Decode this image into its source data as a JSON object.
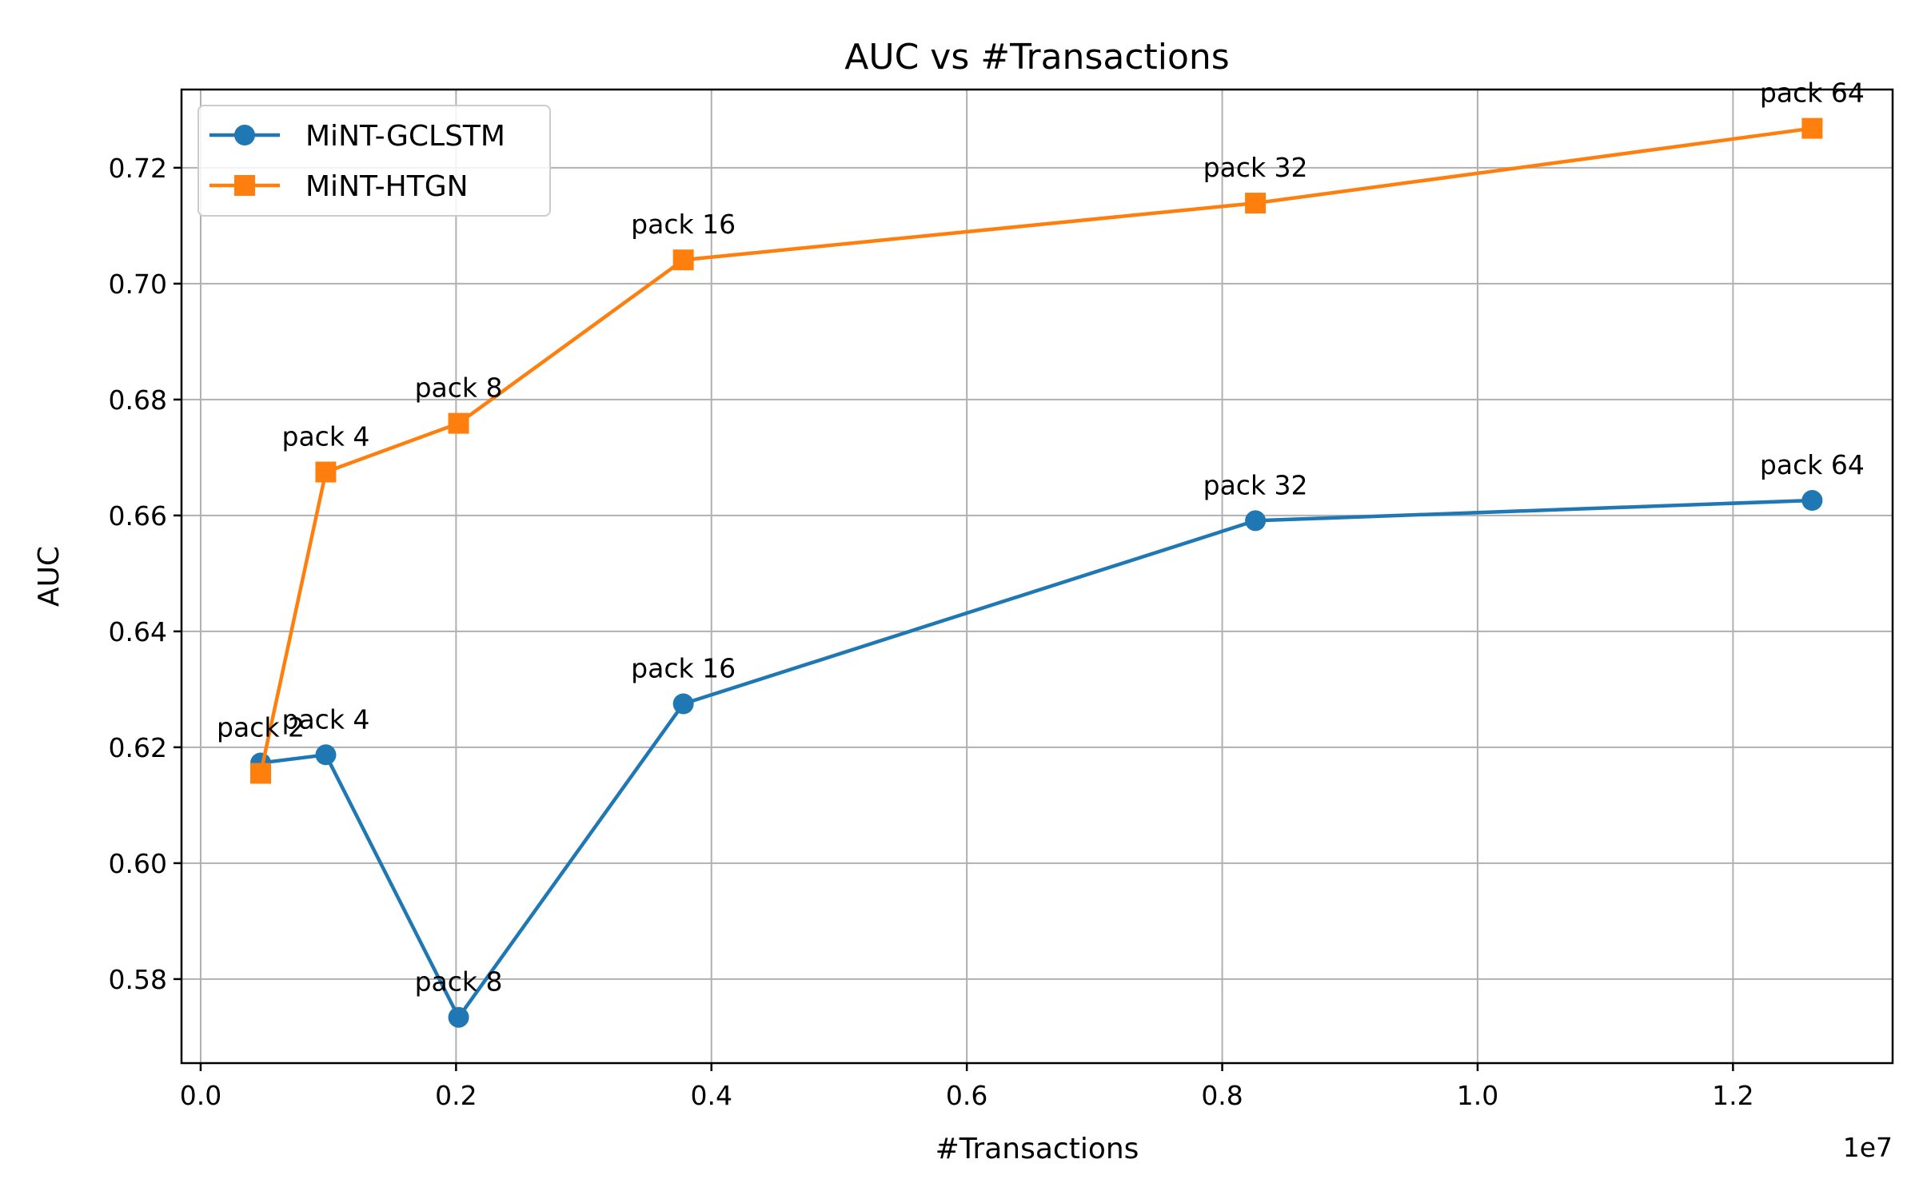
{
  "chart_data": {
    "type": "line",
    "title": "AUC vs #Transactions",
    "xlabel": "#Transactions",
    "ylabel": "AUC",
    "x_offset_text": "1e7",
    "xlim": [
      -0.015,
      1.325
    ],
    "ylim": [
      0.5655,
      0.7335
    ],
    "xticks": [
      0.0,
      0.2,
      0.4,
      0.6,
      0.8,
      1.0,
      1.2
    ],
    "xtick_labels": [
      "0.0",
      "0.2",
      "0.4",
      "0.6",
      "0.8",
      "1.0",
      "1.2"
    ],
    "yticks": [
      0.58,
      0.6,
      0.62,
      0.64,
      0.66,
      0.68,
      0.7,
      0.72
    ],
    "ytick_labels": [
      "0.58",
      "0.60",
      "0.62",
      "0.64",
      "0.66",
      "0.68",
      "0.70",
      "0.72"
    ],
    "grid": true,
    "legend_position": "top-left",
    "series": [
      {
        "name": "MiNT-GCLSTM",
        "color": "#1f77b4",
        "marker": "circle",
        "x": [
          0.047,
          0.098,
          0.202,
          0.378,
          0.826,
          1.262
        ],
        "y": [
          0.6173,
          0.6187,
          0.5734,
          0.6275,
          0.6591,
          0.6626
        ],
        "labels": [
          "pack 2",
          "pack 4",
          "pack 8",
          "pack 16",
          "pack 32",
          "pack 64"
        ]
      },
      {
        "name": "MiNT-HTGN",
        "color": "#ff7f0e",
        "marker": "square",
        "x": [
          0.047,
          0.098,
          0.202,
          0.378,
          0.826,
          1.262
        ],
        "y": [
          0.6155,
          0.6675,
          0.6759,
          0.7041,
          0.7139,
          0.7268
        ],
        "labels": [
          "",
          "pack 4",
          "pack 8",
          "pack 16",
          "pack 32",
          "pack 64"
        ]
      }
    ]
  }
}
